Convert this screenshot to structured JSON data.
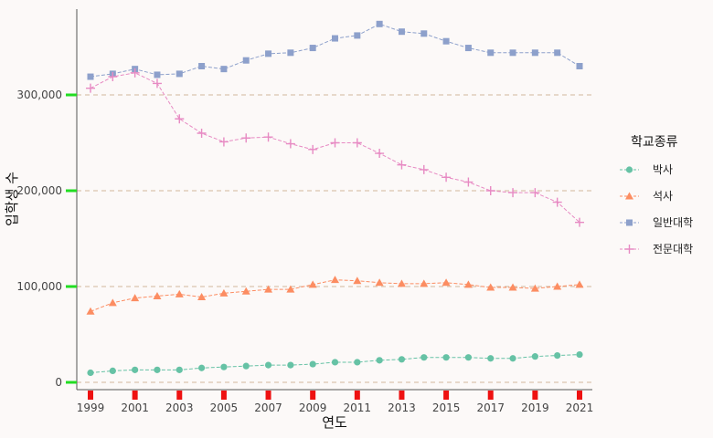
{
  "chart_data": {
    "type": "line",
    "xlabel": "연도",
    "ylabel": "입학생 수",
    "xlim": [
      1999,
      2021
    ],
    "ylim": [
      0,
      370000
    ],
    "grid": "horizontal dashed",
    "legend_position": "right",
    "x_ticks": [
      1999,
      2001,
      2003,
      2005,
      2007,
      2009,
      2011,
      2013,
      2015,
      2017,
      2019,
      2021
    ],
    "x_tick_labels": [
      "1999",
      "2001",
      "2003",
      "2005",
      "2007",
      "2009",
      "2011",
      "2013",
      "2015",
      "2017",
      "2019",
      "2021"
    ],
    "y_ticks": [
      0,
      100000,
      200000,
      300000
    ],
    "y_tick_labels": [
      "0",
      "100,000",
      "200,000",
      "300,000"
    ],
    "legend_title": "학교종류",
    "x": [
      1999,
      2000,
      2001,
      2002,
      2003,
      2004,
      2005,
      2006,
      2007,
      2008,
      2009,
      2010,
      2011,
      2012,
      2013,
      2014,
      2015,
      2016,
      2017,
      2018,
      2019,
      2020,
      2021
    ],
    "series": [
      {
        "name": "박사",
        "color": "#66c2a5",
        "marker": "circle",
        "values": [
          10000,
          12000,
          13000,
          13000,
          13000,
          15000,
          16000,
          17000,
          18000,
          18000,
          19000,
          21000,
          21000,
          23000,
          24000,
          26000,
          26000,
          26000,
          25000,
          25000,
          27000,
          28000,
          29000
        ]
      },
      {
        "name": "석사",
        "color": "#fc8d62",
        "marker": "triangle",
        "values": [
          74000,
          83000,
          88000,
          90000,
          92000,
          89000,
          93000,
          95000,
          97000,
          97000,
          102000,
          107000,
          106000,
          104000,
          103000,
          103000,
          104000,
          102000,
          99000,
          99000,
          98000,
          100000,
          102000
        ]
      },
      {
        "name": "일반대학",
        "color": "#8da0cb",
        "marker": "square",
        "values": [
          319000,
          322000,
          327000,
          321000,
          322000,
          330000,
          327000,
          336000,
          343000,
          344000,
          349000,
          359000,
          362000,
          374000,
          366000,
          364000,
          356000,
          349000,
          344000,
          344000,
          344000,
          344000,
          330000
        ]
      },
      {
        "name": "전문대학",
        "color": "#e78ac3",
        "marker": "plus",
        "values": [
          307000,
          319000,
          323000,
          312000,
          275000,
          260000,
          251000,
          255000,
          256000,
          249000,
          243000,
          250000,
          250000,
          239000,
          227000,
          222000,
          214000,
          209000,
          200000,
          198000,
          198000,
          188000,
          167000
        ]
      }
    ]
  }
}
